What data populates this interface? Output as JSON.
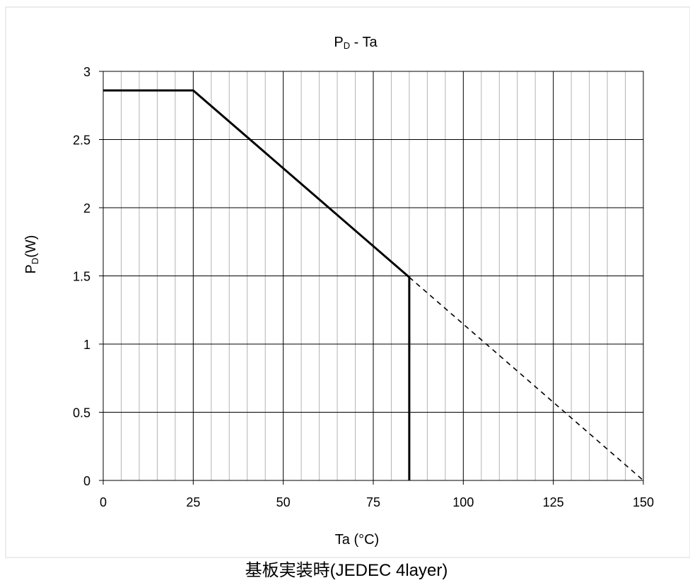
{
  "chart_data": {
    "type": "line",
    "title_main": "P",
    "title_sub": "D",
    "title_rest": " - Ta",
    "ylabel_main": "P",
    "ylabel_sub": "D",
    "ylabel_rest": "(W)",
    "xlabel": "Ta (°C)",
    "caption": "基板実装時(JEDEC 4layer)",
    "xlim": [
      0,
      150
    ],
    "ylim": [
      0,
      3
    ],
    "x_ticks": [
      0,
      25,
      50,
      75,
      100,
      125,
      150
    ],
    "x_tick_labels": [
      "0",
      "25",
      "50",
      "75",
      "100",
      "125",
      "150"
    ],
    "y_ticks": [
      0,
      0.5,
      1,
      1.5,
      2,
      2.5,
      3
    ],
    "y_tick_labels": [
      "0",
      "0.5",
      "1",
      "1.5",
      "2",
      "2.5",
      "3"
    ],
    "x_minor_step": 5,
    "grid": true,
    "series": [
      {
        "style": "solid",
        "color": "#000000",
        "points": [
          [
            0,
            2.86
          ],
          [
            25,
            2.86
          ],
          [
            85,
            1.49
          ],
          [
            85,
            0
          ]
        ]
      },
      {
        "style": "dashed",
        "color": "#000000",
        "points": [
          [
            85,
            1.49
          ],
          [
            150,
            0
          ]
        ]
      }
    ]
  }
}
